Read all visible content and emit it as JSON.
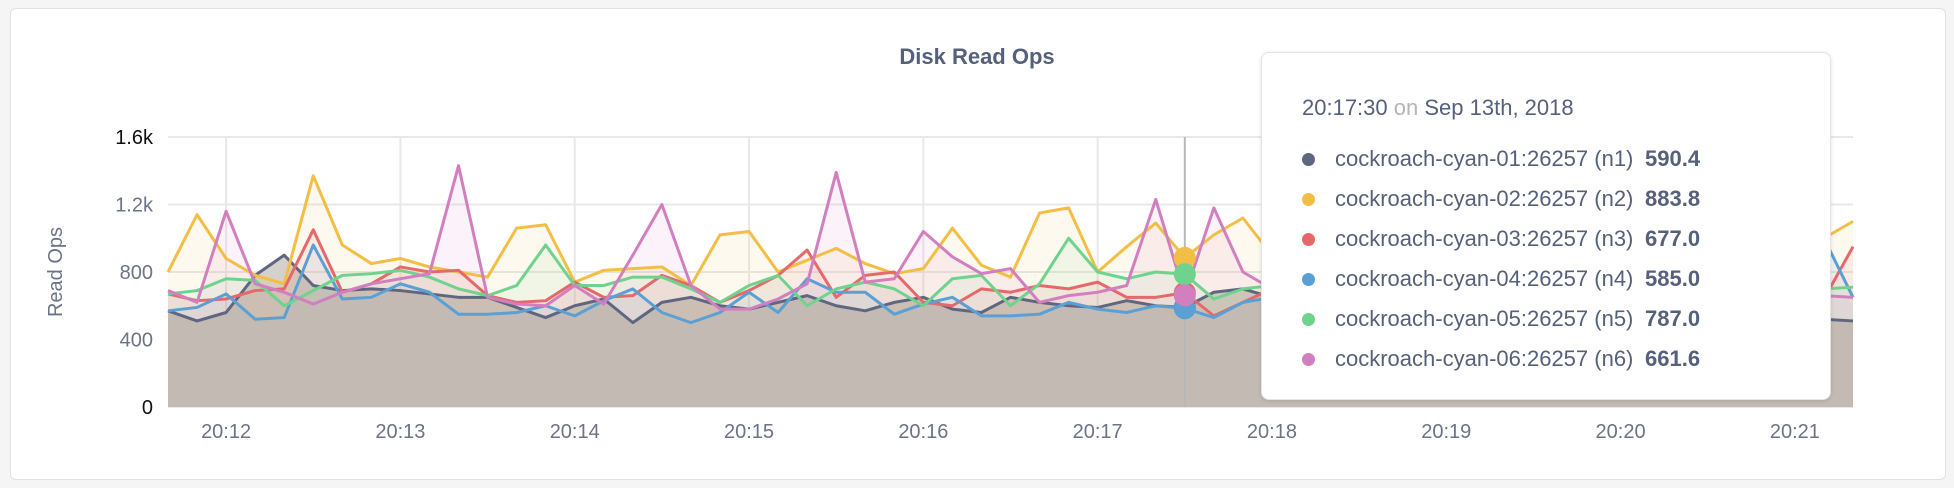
{
  "chart_data": {
    "type": "area",
    "title": "Disk Read Ops",
    "ylabel": "Read Ops",
    "xlabel": "",
    "ylim": [
      0,
      1600
    ],
    "yticks": [
      "0",
      "400",
      "800",
      "1.2k",
      "1.6k"
    ],
    "ytick_values": [
      0,
      400,
      800,
      1200,
      1600
    ],
    "x_start": "20:11:40",
    "x_end": "20:21:20",
    "x_step_seconds": 10,
    "xticks": [
      "20:12",
      "20:13",
      "20:14",
      "20:15",
      "20:16",
      "20:17",
      "20:18",
      "20:19",
      "20:20",
      "20:21"
    ],
    "grid": true,
    "series": [
      {
        "name": "cockroach-cyan-01:26257 (n1)",
        "color": "#5f6780",
        "values": [
          570,
          510,
          560,
          780,
          900,
          720,
          690,
          700,
          690,
          670,
          650,
          650,
          590,
          530,
          600,
          640,
          500,
          620,
          650,
          600,
          580,
          620,
          660,
          600,
          570,
          620,
          650,
          580,
          560,
          650,
          620,
          600,
          590,
          630,
          600,
          590.4,
          680,
          700,
          650,
          620,
          600,
          580,
          610,
          640,
          600,
          590,
          560,
          600,
          620,
          580,
          560,
          590,
          600,
          570,
          540,
          500,
          510,
          520,
          510
        ]
      },
      {
        "name": "cockroach-cyan-02:26257 (n2)",
        "color": "#f2be45",
        "values": [
          800,
          1140,
          880,
          780,
          730,
          1370,
          960,
          850,
          880,
          830,
          800,
          770,
          1060,
          1080,
          740,
          810,
          820,
          830,
          720,
          1020,
          1040,
          800,
          870,
          940,
          850,
          790,
          820,
          1060,
          840,
          770,
          1150,
          1180,
          800,
          950,
          1090,
          883.8,
          1020,
          1120,
          900,
          850,
          800,
          950,
          870,
          820,
          900,
          1000,
          850,
          800,
          880,
          920,
          860,
          820,
          900,
          950,
          880,
          840,
          1000,
          1000,
          1100
        ]
      },
      {
        "name": "cockroach-cyan-03:26257 (n3)",
        "color": "#e5686b",
        "values": [
          670,
          630,
          640,
          690,
          700,
          1050,
          680,
          730,
          830,
          800,
          810,
          660,
          620,
          630,
          740,
          650,
          660,
          780,
          720,
          620,
          690,
          780,
          930,
          650,
          780,
          800,
          620,
          600,
          700,
          680,
          720,
          700,
          740,
          650,
          650,
          677.0,
          540,
          620,
          700,
          680,
          650,
          720,
          760,
          690,
          640,
          680,
          700,
          720,
          690,
          660,
          710,
          740,
          700,
          680,
          650,
          700,
          720,
          640,
          950
        ]
      },
      {
        "name": "cockroach-cyan-04:26257 (n4)",
        "color": "#5ba0d4",
        "values": [
          570,
          590,
          670,
          520,
          530,
          960,
          640,
          650,
          730,
          680,
          550,
          550,
          560,
          600,
          540,
          630,
          700,
          560,
          500,
          560,
          680,
          560,
          760,
          680,
          680,
          550,
          610,
          650,
          540,
          540,
          550,
          620,
          580,
          560,
          600,
          585.0,
          530,
          620,
          650,
          600,
          580,
          560,
          600,
          620,
          650,
          640,
          600,
          580,
          620,
          660,
          610,
          600,
          580,
          640,
          620,
          600,
          580,
          1000,
          650
        ]
      },
      {
        "name": "cockroach-cyan-05:26257 (n5)",
        "color": "#6fd38d",
        "values": [
          670,
          690,
          760,
          750,
          600,
          690,
          780,
          790,
          810,
          770,
          700,
          660,
          720,
          960,
          720,
          720,
          770,
          770,
          700,
          620,
          720,
          780,
          600,
          700,
          740,
          700,
          600,
          760,
          780,
          600,
          730,
          1000,
          800,
          760,
          800,
          787.0,
          640,
          700,
          720,
          680,
          700,
          740,
          760,
          700,
          680,
          720,
          750,
          730,
          700,
          680,
          720,
          740,
          700,
          690,
          710,
          700,
          680,
          700,
          710
        ]
      },
      {
        "name": "cockroach-cyan-06:26257 (n6)",
        "color": "#d27fc0",
        "values": [
          690,
          620,
          1160,
          730,
          680,
          610,
          680,
          730,
          760,
          790,
          1430,
          650,
          610,
          600,
          720,
          610,
          900,
          1200,
          720,
          580,
          580,
          640,
          730,
          1390,
          740,
          760,
          1040,
          890,
          790,
          820,
          620,
          660,
          680,
          720,
          1230,
          661.6,
          1180,
          800,
          700,
          680,
          720,
          650,
          700,
          680,
          750,
          720,
          690,
          660,
          700,
          720,
          690,
          680,
          700,
          660,
          680,
          700,
          680,
          660,
          650
        ]
      }
    ],
    "hover": {
      "time": "20:17:30",
      "on": "on",
      "date": "Sep 13th, 2018",
      "index": 35,
      "rows": [
        {
          "name": "cockroach-cyan-01:26257 (n1)",
          "value": "590.4"
        },
        {
          "name": "cockroach-cyan-02:26257 (n2)",
          "value": "883.8"
        },
        {
          "name": "cockroach-cyan-03:26257 (n3)",
          "value": "677.0"
        },
        {
          "name": "cockroach-cyan-04:26257 (n4)",
          "value": "585.0"
        },
        {
          "name": "cockroach-cyan-05:26257 (n5)",
          "value": "787.0"
        },
        {
          "name": "cockroach-cyan-06:26257 (n6)",
          "value": "661.6"
        }
      ]
    }
  }
}
